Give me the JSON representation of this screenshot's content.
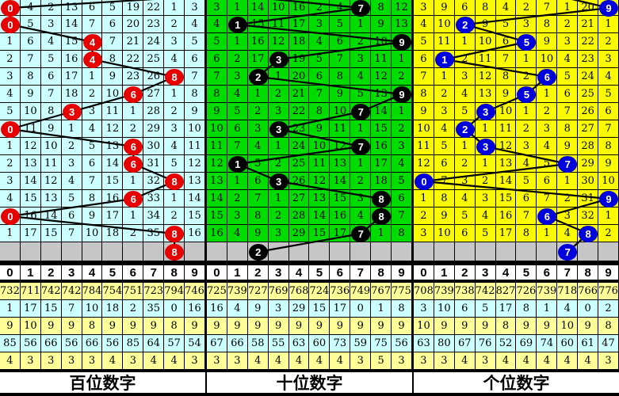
{
  "chart_data": {
    "type": "table",
    "panel_labels": [
      "百位数字",
      "十位数字",
      "个位数字"
    ],
    "digit_header": [
      "0",
      "1",
      "2",
      "3",
      "4",
      "5",
      "6",
      "7",
      "8",
      "9"
    ],
    "colors": {
      "hundreds_cell_bg": "#CCFFFF",
      "tens_cell_bg": "#00DC00",
      "units_cell_bg": "#FAFA00",
      "hundreds_ball": "#E60000",
      "tens_ball": "#000000",
      "units_ball": "#0000DD",
      "pending_row_bg": "#C6C6C6",
      "stats_row_bgs": [
        "#FFFF99",
        "#CCFFFF",
        "#FFFF99",
        "#CCFFFF",
        "#FFFF99"
      ],
      "grid_line": "#000000",
      "trend_line": "#000000",
      "header_bg": "#FFFFFF"
    },
    "panels": [
      {
        "label": "百位数字",
        "cell_bg": "#CCFFFF",
        "ball_color": "#E60000",
        "rows": [
          {
            "cells": [
              "",
              "4",
              "2",
              "13",
              "6",
              "5",
              "19",
              "22",
              "1",
              "3"
            ],
            "ball_col": 0,
            "ball_value": "0"
          },
          {
            "cells": [
              "",
              "5",
              "3",
              "14",
              "7",
              "6",
              "20",
              "23",
              "2",
              "4"
            ],
            "ball_col": 0,
            "ball_value": "0"
          },
          {
            "cells": [
              "1",
              "6",
              "4",
              "15",
              "",
              "7",
              "21",
              "24",
              "3",
              "5"
            ],
            "ball_col": 4,
            "ball_value": "4"
          },
          {
            "cells": [
              "2",
              "7",
              "5",
              "16",
              "",
              "8",
              "22",
              "25",
              "4",
              "6"
            ],
            "ball_col": 4,
            "ball_value": "4"
          },
          {
            "cells": [
              "3",
              "8",
              "6",
              "17",
              "1",
              "9",
              "23",
              "26",
              "",
              "7"
            ],
            "ball_col": 8,
            "ball_value": "8"
          },
          {
            "cells": [
              "4",
              "9",
              "7",
              "18",
              "2",
              "10",
              "",
              "27",
              "1",
              "8"
            ],
            "ball_col": 6,
            "ball_value": "6"
          },
          {
            "cells": [
              "5",
              "10",
              "8",
              "",
              "3",
              "11",
              "1",
              "28",
              "2",
              "9"
            ],
            "ball_col": 3,
            "ball_value": "3"
          },
          {
            "cells": [
              "",
              "11",
              "9",
              "1",
              "4",
              "12",
              "2",
              "29",
              "3",
              "10"
            ],
            "ball_col": 0,
            "ball_value": "0"
          },
          {
            "cells": [
              "1",
              "12",
              "10",
              "2",
              "5",
              "13",
              "",
              "30",
              "4",
              "11"
            ],
            "ball_col": 6,
            "ball_value": "6"
          },
          {
            "cells": [
              "2",
              "13",
              "11",
              "3",
              "6",
              "14",
              "",
              "31",
              "5",
              "12"
            ],
            "ball_col": 6,
            "ball_value": "6"
          },
          {
            "cells": [
              "3",
              "14",
              "12",
              "4",
              "7",
              "15",
              "1",
              "32",
              "",
              "13"
            ],
            "ball_col": 8,
            "ball_value": "8"
          },
          {
            "cells": [
              "4",
              "15",
              "13",
              "5",
              "8",
              "16",
              "",
              "33",
              "1",
              "14"
            ],
            "ball_col": 6,
            "ball_value": "6"
          },
          {
            "cells": [
              "",
              "16",
              "14",
              "6",
              "9",
              "17",
              "1",
              "34",
              "2",
              "15"
            ],
            "ball_col": 0,
            "ball_value": "0"
          },
          {
            "cells": [
              "1",
              "17",
              "15",
              "7",
              "10",
              "18",
              "2",
              "35",
              "",
              "16"
            ],
            "ball_col": 8,
            "ball_value": "8"
          }
        ],
        "pending_ball": {
          "col": 8,
          "value": "8"
        },
        "line_start": [
          259,
          -5
        ],
        "stats": [
          [
            "732",
            "711",
            "742",
            "742",
            "784",
            "754",
            "751",
            "723",
            "794",
            "746"
          ],
          [
            "1",
            "17",
            "15",
            "7",
            "10",
            "18",
            "2",
            "35",
            "0",
            "16"
          ],
          [
            "9",
            "10",
            "9",
            "9",
            "8",
            "9",
            "9",
            "9",
            "8",
            "9"
          ],
          [
            "85",
            "56",
            "66",
            "56",
            "66",
            "56",
            "85",
            "64",
            "57",
            "54"
          ],
          [
            "4",
            "3",
            "3",
            "3",
            "3",
            "4",
            "3",
            "4",
            "4",
            "3"
          ]
        ]
      },
      {
        "label": "十位数字",
        "cell_bg": "#00DC00",
        "ball_color": "#000000",
        "rows": [
          {
            "cells": [
              "3",
              "1",
              "14",
              "10",
              "16",
              "2",
              "4",
              "",
              "8",
              "12"
            ],
            "ball_col": 7,
            "ball_value": "7"
          },
          {
            "cells": [
              "4",
              "",
              "15",
              "11",
              "17",
              "3",
              "5",
              "1",
              "9",
              "13"
            ],
            "ball_col": 1,
            "ball_value": "1"
          },
          {
            "cells": [
              "5",
              "1",
              "16",
              "12",
              "18",
              "4",
              "6",
              "2",
              "10",
              ""
            ],
            "ball_col": 9,
            "ball_value": "9"
          },
          {
            "cells": [
              "6",
              "2",
              "17",
              "",
              "19",
              "5",
              "7",
              "3",
              "11",
              "1"
            ],
            "ball_col": 3,
            "ball_value": "3"
          },
          {
            "cells": [
              "7",
              "3",
              "",
              "1",
              "20",
              "6",
              "8",
              "4",
              "12",
              "2"
            ],
            "ball_col": 2,
            "ball_value": "2"
          },
          {
            "cells": [
              "8",
              "4",
              "1",
              "2",
              "21",
              "7",
              "9",
              "5",
              "13",
              ""
            ],
            "ball_col": 9,
            "ball_value": "9"
          },
          {
            "cells": [
              "9",
              "5",
              "2",
              "3",
              "22",
              "8",
              "10",
              "",
              "14",
              "1"
            ],
            "ball_col": 7,
            "ball_value": "7"
          },
          {
            "cells": [
              "10",
              "6",
              "3",
              "",
              "23",
              "9",
              "11",
              "1",
              "15",
              "2"
            ],
            "ball_col": 3,
            "ball_value": "3"
          },
          {
            "cells": [
              "11",
              "7",
              "4",
              "1",
              "24",
              "10",
              "12",
              "",
              "16",
              "3"
            ],
            "ball_col": 7,
            "ball_value": "7"
          },
          {
            "cells": [
              "12",
              "",
              "5",
              "2",
              "25",
              "11",
              "13",
              "1",
              "17",
              "4"
            ],
            "ball_col": 1,
            "ball_value": "1"
          },
          {
            "cells": [
              "13",
              "1",
              "6",
              "",
              "26",
              "12",
              "14",
              "2",
              "18",
              "5"
            ],
            "ball_col": 3,
            "ball_value": "3"
          },
          {
            "cells": [
              "14",
              "2",
              "7",
              "1",
              "27",
              "13",
              "15",
              "3",
              "",
              "6"
            ],
            "ball_col": 8,
            "ball_value": "8"
          },
          {
            "cells": [
              "15",
              "3",
              "8",
              "2",
              "28",
              "14",
              "16",
              "4",
              "",
              "7"
            ],
            "ball_col": 8,
            "ball_value": "8"
          },
          {
            "cells": [
              "16",
              "4",
              "9",
              "3",
              "29",
              "15",
              "17",
              "",
              "1",
              "8"
            ],
            "ball_col": 7,
            "ball_value": "7"
          }
        ],
        "pending_ball": {
          "col": 2,
          "value": "2"
        },
        "line_start": [
          -6,
          -10
        ],
        "stats": [
          [
            "725",
            "739",
            "727",
            "769",
            "768",
            "724",
            "736",
            "749",
            "767",
            "775"
          ],
          [
            "16",
            "4",
            "9",
            "3",
            "29",
            "15",
            "17",
            "0",
            "1",
            "8"
          ],
          [
            "9",
            "9",
            "9",
            "9",
            "9",
            "9",
            "9",
            "9",
            "9",
            "9"
          ],
          [
            "67",
            "66",
            "58",
            "55",
            "63",
            "60",
            "73",
            "59",
            "75",
            "56"
          ],
          [
            "3",
            "3",
            "4",
            "4",
            "4",
            "4",
            "4",
            "3",
            "5",
            "3"
          ]
        ]
      },
      {
        "label": "个位数字",
        "cell_bg": "#FAFA00",
        "ball_color": "#0000DD",
        "rows": [
          {
            "cells": [
              "3",
              "9",
              "6",
              "8",
              "4",
              "2",
              "7",
              "1",
              "20",
              ""
            ],
            "ball_col": 9,
            "ball_value": "9"
          },
          {
            "cells": [
              "4",
              "10",
              "",
              "9",
              "5",
              "3",
              "8",
              "2",
              "21",
              "1"
            ],
            "ball_col": 2,
            "ball_value": "2"
          },
          {
            "cells": [
              "5",
              "11",
              "1",
              "10",
              "6",
              "",
              "9",
              "3",
              "22",
              "2"
            ],
            "ball_col": 5,
            "ball_value": "5"
          },
          {
            "cells": [
              "6",
              "",
              "2",
              "11",
              "7",
              "1",
              "10",
              "4",
              "23",
              "3"
            ],
            "ball_col": 1,
            "ball_value": "1"
          },
          {
            "cells": [
              "7",
              "1",
              "3",
              "12",
              "8",
              "2",
              "",
              "5",
              "24",
              "4"
            ],
            "ball_col": 6,
            "ball_value": "6"
          },
          {
            "cells": [
              "8",
              "2",
              "4",
              "13",
              "9",
              "",
              "1",
              "6",
              "25",
              "5"
            ],
            "ball_col": 5,
            "ball_value": "5"
          },
          {
            "cells": [
              "9",
              "3",
              "5",
              "",
              "10",
              "1",
              "2",
              "7",
              "26",
              "6"
            ],
            "ball_col": 3,
            "ball_value": "3"
          },
          {
            "cells": [
              "10",
              "4",
              "",
              "1",
              "11",
              "2",
              "3",
              "8",
              "27",
              "7"
            ],
            "ball_col": 2,
            "ball_value": "2"
          },
          {
            "cells": [
              "11",
              "5",
              "1",
              "",
              "12",
              "3",
              "4",
              "9",
              "28",
              "8"
            ],
            "ball_col": 3,
            "ball_value": "3"
          },
          {
            "cells": [
              "12",
              "6",
              "2",
              "1",
              "13",
              "4",
              "5",
              "",
              "29",
              "9"
            ],
            "ball_col": 7,
            "ball_value": "7"
          },
          {
            "cells": [
              "",
              "7",
              "3",
              "2",
              "14",
              "5",
              "6",
              "1",
              "30",
              "10"
            ],
            "ball_col": 0,
            "ball_value": "0"
          },
          {
            "cells": [
              "1",
              "8",
              "4",
              "3",
              "15",
              "6",
              "7",
              "2",
              "31",
              ""
            ],
            "ball_col": 9,
            "ball_value": "9"
          },
          {
            "cells": [
              "2",
              "9",
              "5",
              "4",
              "16",
              "7",
              "",
              "3",
              "32",
              "1"
            ],
            "ball_col": 6,
            "ball_value": "6"
          },
          {
            "cells": [
              "3",
              "10",
              "6",
              "5",
              "17",
              "8",
              "1",
              "4",
              "",
              "2"
            ],
            "ball_col": 8,
            "ball_value": "8"
          }
        ],
        "pending_ball": {
          "col": 7,
          "value": "7"
        },
        "line_start": [
          120,
          -20
        ],
        "stats": [
          [
            "708",
            "739",
            "738",
            "742",
            "827",
            "726",
            "739",
            "718",
            "766",
            "776"
          ],
          [
            "3",
            "10",
            "6",
            "5",
            "17",
            "8",
            "1",
            "4",
            "0",
            "2"
          ],
          [
            "10",
            "9",
            "9",
            "9",
            "8",
            "9",
            "9",
            "10",
            "9",
            "8"
          ],
          [
            "63",
            "80",
            "67",
            "76",
            "52",
            "69",
            "74",
            "60",
            "61",
            "47"
          ],
          [
            "3",
            "3",
            "4",
            "3",
            "4",
            "4",
            "4",
            "4",
            "4",
            "3"
          ]
        ]
      }
    ]
  }
}
